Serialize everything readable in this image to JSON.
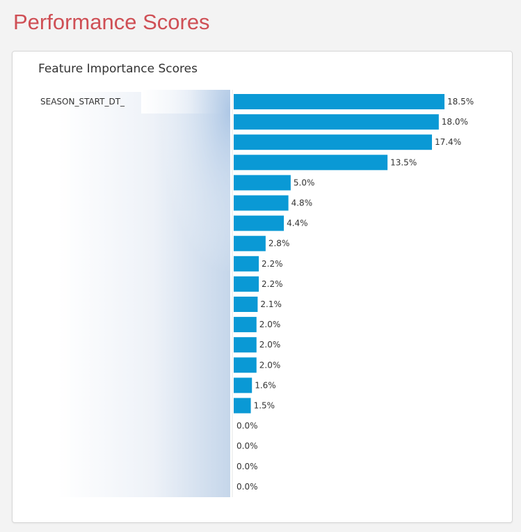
{
  "page": {
    "title": "Performance Scores"
  },
  "chart_data": {
    "type": "bar",
    "orientation": "horizontal",
    "title": "Feature Importance Scores",
    "categories": [
      "SEASON_START_DT_",
      "",
      "",
      "",
      "",
      "",
      "",
      "",
      "",
      "",
      "",
      "",
      "",
      "",
      "",
      "",
      "",
      "",
      "",
      ""
    ],
    "values": [
      18.5,
      18.0,
      17.4,
      13.5,
      5.0,
      4.8,
      4.4,
      2.8,
      2.2,
      2.2,
      2.1,
      2.0,
      2.0,
      2.0,
      1.6,
      1.5,
      0.0,
      0.0,
      0.0,
      0.0
    ],
    "labels": [
      "18.5%",
      "18.0%",
      "17.4%",
      "13.5%",
      "5.0%",
      "4.8%",
      "4.4%",
      "2.8%",
      "2.2%",
      "2.2%",
      "2.1%",
      "2.0%",
      "2.0%",
      "2.0%",
      "1.6%",
      "1.5%",
      "0.0%",
      "0.0%",
      "0.0%",
      "0.0%"
    ],
    "unit": "%",
    "xlim": [
      0,
      18.5
    ],
    "grid": false,
    "legend": "none",
    "bar_color": "#0a99d5",
    "redacted_labels": true
  }
}
